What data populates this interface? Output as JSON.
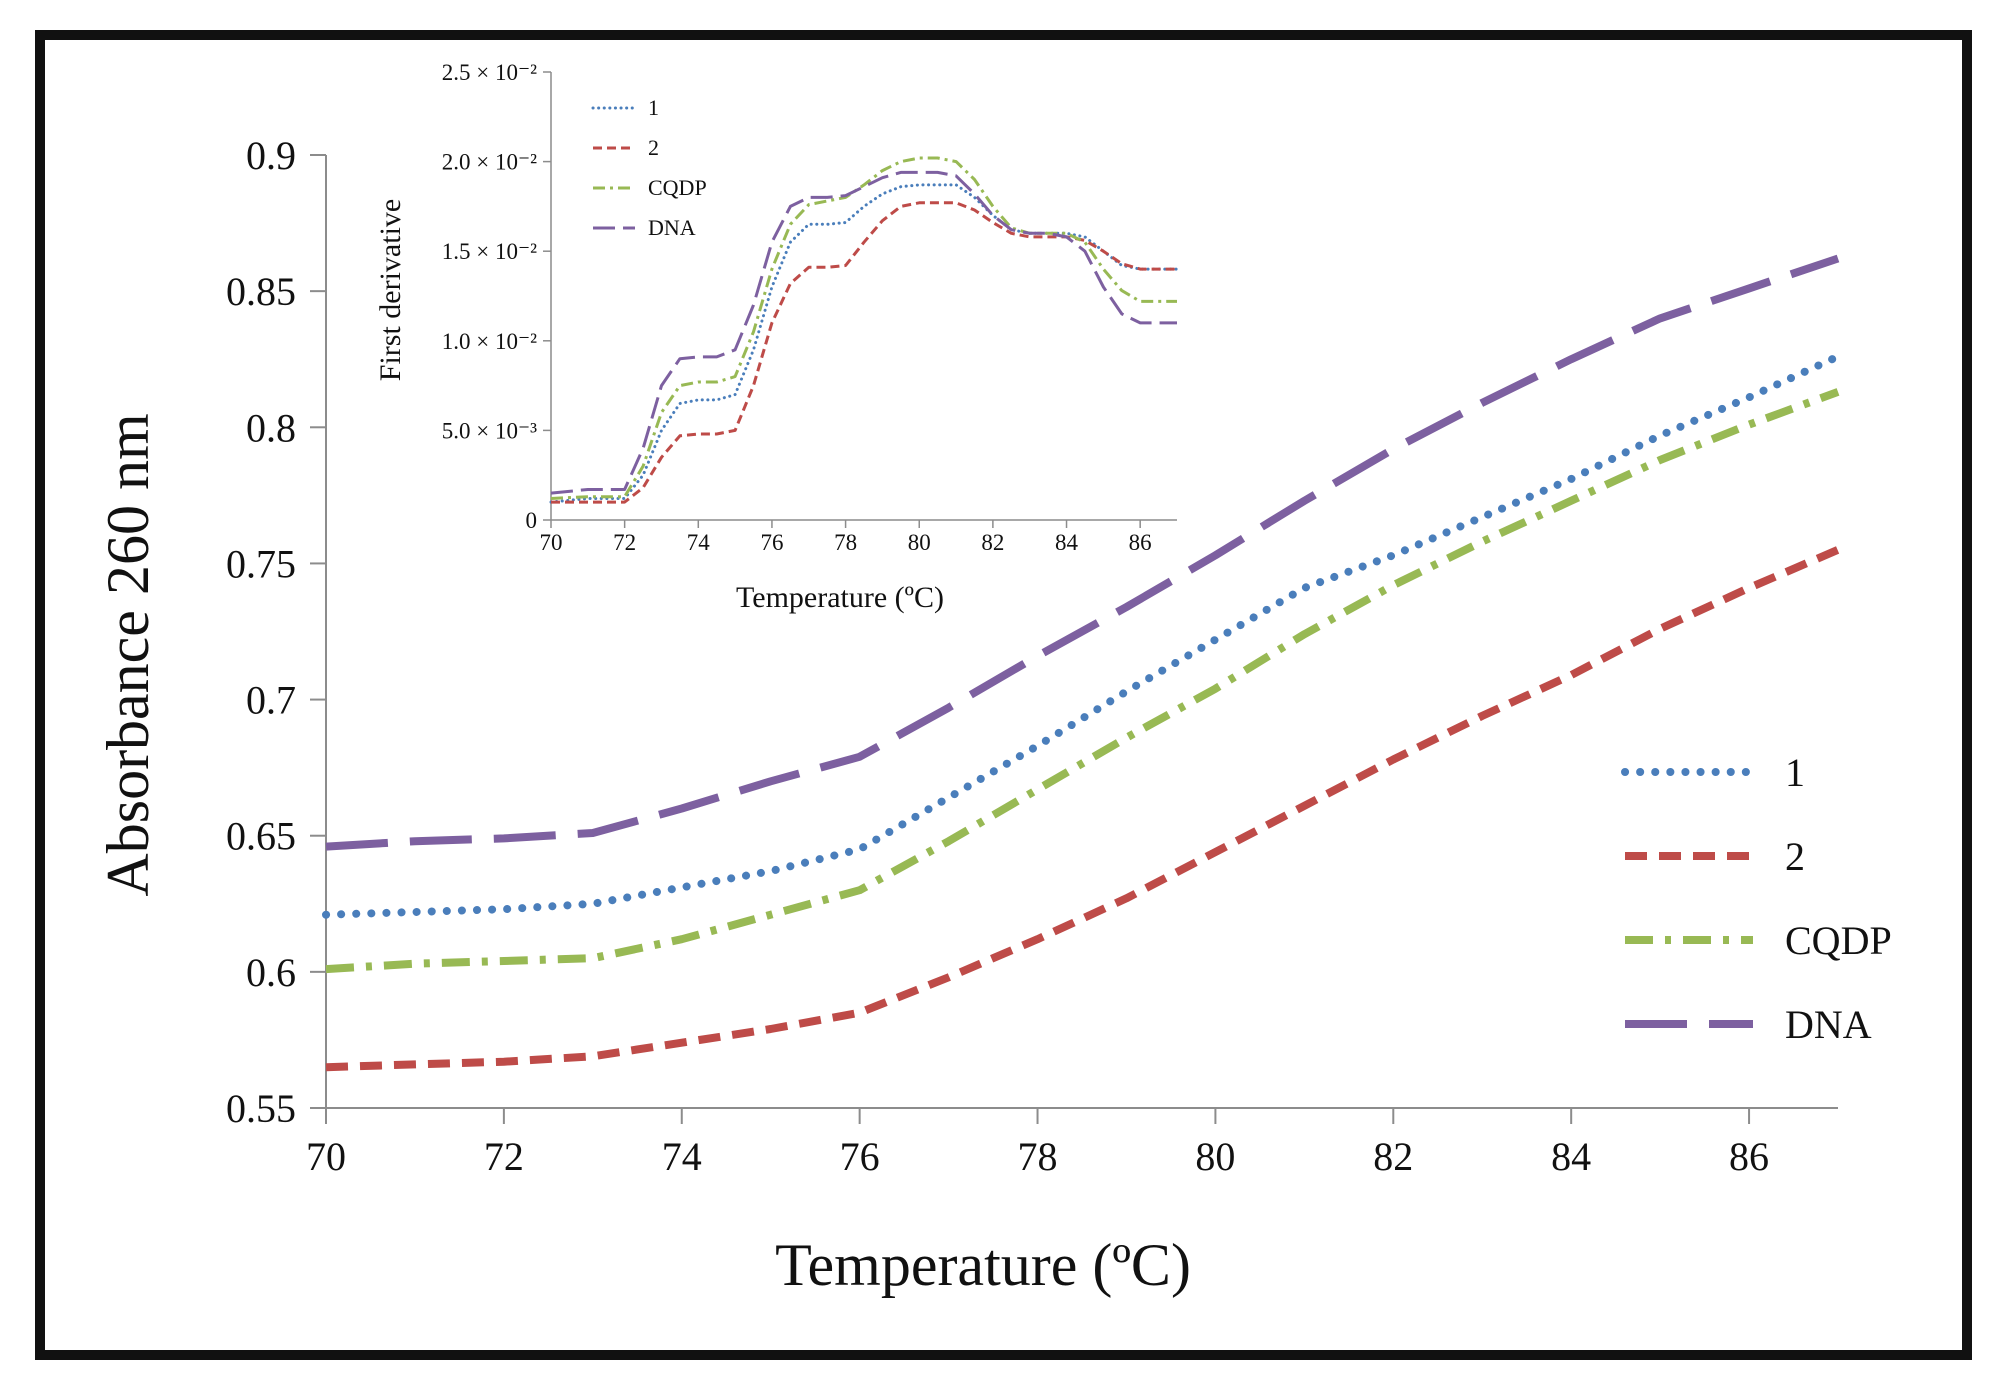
{
  "chart_data": [
    {
      "type": "line",
      "title": "",
      "xlabel": "Temperature (ºC)",
      "ylabel": "Absorbance 260 nm",
      "xlim": [
        70,
        87
      ],
      "ylim": [
        0.55,
        0.9
      ],
      "x_ticks": [
        70,
        72,
        74,
        76,
        78,
        80,
        82,
        84,
        86
      ],
      "x_tick_labels": [
        "70",
        "72",
        "74",
        "76",
        "78",
        "80",
        "82",
        "84",
        "86"
      ],
      "y_ticks": [
        0.55,
        0.6,
        0.65,
        0.7,
        0.75,
        0.8,
        0.85,
        0.9
      ],
      "y_tick_labels": [
        "0.55",
        "0.6",
        "0.65",
        "0.7",
        "0.75",
        "0.8",
        "0.85",
        "0.9"
      ],
      "grid": false,
      "legend_position": "right",
      "series": [
        {
          "name": "1",
          "color": "#4a7ebb",
          "style": "dotted",
          "x": [
            70,
            71,
            72,
            73,
            74,
            75,
            76,
            77,
            78,
            79,
            80,
            81,
            82,
            83,
            84,
            85,
            86,
            87
          ],
          "y": [
            0.621,
            0.622,
            0.623,
            0.625,
            0.631,
            0.637,
            0.645,
            0.664,
            0.683,
            0.703,
            0.722,
            0.741,
            0.753,
            0.767,
            0.781,
            0.797,
            0.811,
            0.826
          ]
        },
        {
          "name": "2",
          "color": "#be4b48",
          "style": "dashed",
          "x": [
            70,
            71,
            72,
            73,
            74,
            75,
            76,
            77,
            78,
            79,
            80,
            81,
            82,
            83,
            84,
            85,
            86,
            87
          ],
          "y": [
            0.565,
            0.566,
            0.567,
            0.569,
            0.574,
            0.579,
            0.585,
            0.598,
            0.612,
            0.627,
            0.644,
            0.661,
            0.678,
            0.694,
            0.709,
            0.726,
            0.741,
            0.755
          ]
        },
        {
          "name": "CQDP",
          "color": "#98b954",
          "style": "dashdot",
          "x": [
            70,
            71,
            72,
            73,
            74,
            75,
            76,
            77,
            78,
            79,
            80,
            81,
            82,
            83,
            84,
            85,
            86,
            87
          ],
          "y": [
            0.601,
            0.603,
            0.604,
            0.605,
            0.612,
            0.621,
            0.63,
            0.648,
            0.667,
            0.686,
            0.704,
            0.724,
            0.742,
            0.758,
            0.773,
            0.788,
            0.801,
            0.813
          ]
        },
        {
          "name": "DNA",
          "color": "#7d60a0",
          "style": "longdash",
          "x": [
            70,
            71,
            72,
            73,
            74,
            75,
            76,
            77,
            78,
            79,
            80,
            81,
            82,
            83,
            84,
            85,
            86,
            87
          ],
          "y": [
            0.646,
            0.648,
            0.649,
            0.651,
            0.66,
            0.67,
            0.679,
            0.697,
            0.716,
            0.734,
            0.753,
            0.773,
            0.792,
            0.809,
            0.825,
            0.84,
            0.851,
            0.862
          ]
        }
      ]
    },
    {
      "type": "line",
      "title": "",
      "xlabel": "Temperature (ºC)",
      "ylabel": "First derivative",
      "xlim": [
        70,
        87
      ],
      "ylim": [
        0,
        0.025
      ],
      "x_ticks": [
        70,
        72,
        74,
        76,
        78,
        80,
        82,
        84,
        86
      ],
      "x_tick_labels": [
        "70",
        "72",
        "74",
        "76",
        "78",
        "80",
        "82",
        "84",
        "86"
      ],
      "y_ticks": [
        0,
        0.005,
        0.01,
        0.015,
        0.02,
        0.025
      ],
      "y_tick_labels": [
        "0",
        "5.0 × 10⁻³",
        "1.0 × 10⁻²",
        "1.5 × 10⁻²",
        "2.0 × 10⁻²",
        "2.5 × 10⁻²"
      ],
      "grid": false,
      "legend_position": "top-left",
      "series": [
        {
          "name": "1",
          "color": "#4a7ebb",
          "style": "dotted",
          "x": [
            70,
            71,
            72,
            72.5,
            73,
            73.5,
            74,
            74.5,
            75,
            75.5,
            76,
            76.5,
            77,
            77.5,
            78,
            78.5,
            79,
            79.5,
            80,
            80.5,
            81,
            81.5,
            82,
            82.5,
            83,
            83.5,
            84,
            84.5,
            85,
            85.5,
            86,
            86.5,
            87
          ],
          "y": [
            0.001,
            0.0012,
            0.0012,
            0.0025,
            0.005,
            0.0065,
            0.0067,
            0.0067,
            0.007,
            0.0095,
            0.013,
            0.0155,
            0.0165,
            0.0165,
            0.0166,
            0.0175,
            0.0182,
            0.0186,
            0.0187,
            0.0187,
            0.0187,
            0.018,
            0.017,
            0.0162,
            0.016,
            0.016,
            0.016,
            0.0158,
            0.015,
            0.0142,
            0.014,
            0.014,
            0.014
          ]
        },
        {
          "name": "2",
          "color": "#be4b48",
          "style": "dashed",
          "x": [
            70,
            71,
            72,
            72.5,
            73,
            73.5,
            74,
            74.5,
            75,
            75.5,
            76,
            76.5,
            77,
            77.5,
            78,
            78.5,
            79,
            79.5,
            80,
            80.5,
            81,
            81.5,
            82,
            82.5,
            83,
            83.5,
            84,
            84.5,
            85,
            85.5,
            86,
            86.5,
            87
          ],
          "y": [
            0.001,
            0.001,
            0.001,
            0.0018,
            0.0035,
            0.0047,
            0.0048,
            0.0048,
            0.005,
            0.0075,
            0.011,
            0.0132,
            0.0141,
            0.0141,
            0.0142,
            0.0155,
            0.0167,
            0.0175,
            0.0177,
            0.0177,
            0.0177,
            0.0173,
            0.0166,
            0.016,
            0.0158,
            0.0158,
            0.0158,
            0.0156,
            0.015,
            0.0143,
            0.014,
            0.014,
            0.014
          ]
        },
        {
          "name": "CQDP",
          "color": "#98b954",
          "style": "dashdot",
          "x": [
            70,
            71,
            72,
            72.5,
            73,
            73.5,
            74,
            74.5,
            75,
            75.5,
            76,
            76.5,
            77,
            77.5,
            78,
            78.5,
            79,
            79.5,
            80,
            80.5,
            81,
            81.5,
            82,
            82.5,
            83,
            83.5,
            84,
            84.5,
            85,
            85.5,
            86,
            86.5,
            87
          ],
          "y": [
            0.0012,
            0.0013,
            0.0013,
            0.003,
            0.006,
            0.0075,
            0.0077,
            0.0077,
            0.008,
            0.0105,
            0.014,
            0.0165,
            0.0176,
            0.0178,
            0.018,
            0.0187,
            0.0195,
            0.02,
            0.0202,
            0.0202,
            0.02,
            0.019,
            0.0175,
            0.0163,
            0.016,
            0.016,
            0.016,
            0.0155,
            0.014,
            0.0128,
            0.0122,
            0.0122,
            0.0122
          ]
        },
        {
          "name": "DNA",
          "color": "#7d60a0",
          "style": "longdash",
          "x": [
            70,
            71,
            72,
            72.5,
            73,
            73.5,
            74,
            74.5,
            75,
            75.5,
            76,
            76.5,
            77,
            77.5,
            78,
            78.5,
            79,
            79.5,
            80,
            80.5,
            81,
            81.5,
            82,
            82.5,
            83,
            83.5,
            84,
            84.5,
            85,
            85.5,
            86,
            86.5,
            87
          ],
          "y": [
            0.0015,
            0.0017,
            0.0017,
            0.004,
            0.0075,
            0.009,
            0.0091,
            0.0091,
            0.0095,
            0.012,
            0.0155,
            0.0175,
            0.018,
            0.018,
            0.0181,
            0.0186,
            0.0191,
            0.0194,
            0.0194,
            0.0194,
            0.0192,
            0.0182,
            0.017,
            0.0162,
            0.016,
            0.016,
            0.0158,
            0.015,
            0.013,
            0.0115,
            0.011,
            0.011,
            0.011
          ]
        }
      ]
    }
  ]
}
